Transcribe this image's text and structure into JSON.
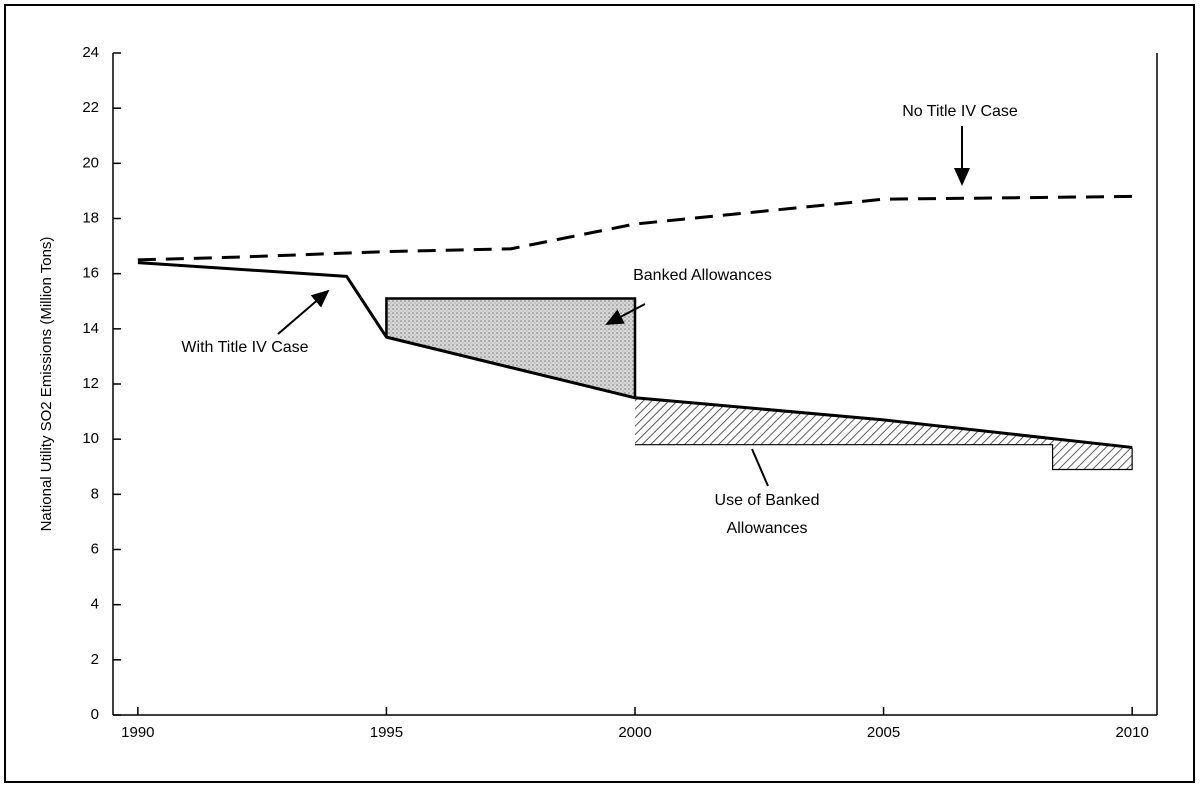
{
  "chart_data": {
    "type": "line",
    "y_label": "National Utility SO2 Emissions (Million Tons)",
    "xlim": [
      1989.5,
      2010.5
    ],
    "xticks": [
      1990,
      1995,
      2000,
      2005,
      2010
    ],
    "ylim": [
      0,
      24
    ],
    "yticks": [
      0,
      2,
      4,
      6,
      8,
      10,
      12,
      14,
      16,
      18,
      20,
      22,
      24
    ],
    "series": [
      {
        "name": "No Title IV Case",
        "color": "#000000",
        "dash": true,
        "x": [
          1990,
          1992,
          1995,
          1997.5,
          2000,
          2005,
          2010
        ],
        "values": [
          16.5,
          16.6,
          16.8,
          16.9,
          17.8,
          18.7,
          18.8
        ]
      },
      {
        "name": "With Title IV Case",
        "color": "#000000",
        "dash": false,
        "x": [
          1990,
          1994.2,
          1995,
          2000,
          2005,
          2010
        ],
        "values": [
          16.4,
          15.9,
          13.7,
          11.5,
          10.7,
          9.7
        ]
      }
    ],
    "shaded_areas": [
      {
        "name": "Banked Allowances",
        "pattern": "stipple",
        "x": [
          1995,
          2000
        ],
        "values": [
          15.1,
          15.1
        ]
      },
      {
        "name": "Use of Banked Allowances",
        "pattern": "hatch",
        "x": [
          2000,
          2008.4,
          2008.4,
          2010
        ],
        "values": [
          9.8,
          9.8,
          8.9,
          8.9
        ]
      }
    ]
  }
}
